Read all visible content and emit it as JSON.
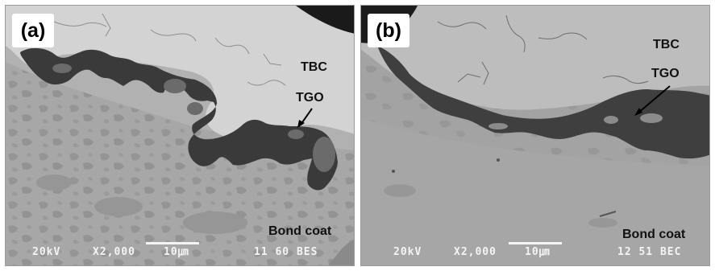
{
  "figure": {
    "panels": [
      {
        "label": "(a)",
        "tbc_label": "TBC",
        "tgo_label": "TGO",
        "bond_coat_label": "Bond coat",
        "databar": {
          "voltage": "20kV",
          "magnification": "X2,000",
          "scale": "10㎛",
          "id": "11 60 BES"
        }
      },
      {
        "label": "(b)",
        "tbc_label": "TBC",
        "tgo_label": "TGO",
        "bond_coat_label": "Bond coat",
        "databar": {
          "voltage": "20kV",
          "magnification": "X2,000",
          "scale": "10㎛",
          "id": "12 51 BEC"
        }
      }
    ]
  }
}
